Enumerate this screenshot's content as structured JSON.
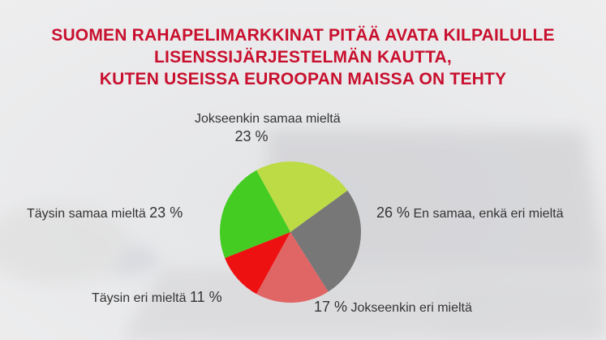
{
  "title_lines": [
    "SUOMEN RAHAPELIMARKKINAT PITÄÄ AVATA KILPAILULLE",
    "LISENSSIJÄRJESTELMÄN KAUTTA,",
    "KUTEN USEISSA EUROOPAN MAISSA ON TEHTY"
  ],
  "chart_data": {
    "type": "pie",
    "unit": "%",
    "slices": [
      {
        "label": "Jokseenkin samaa mieltä",
        "value": 23,
        "value_text": "23 %",
        "color": "#bcdb45"
      },
      {
        "label": "En samaa, enkä eri mieltä",
        "value": 26,
        "value_text": "26 %",
        "color": "#777777"
      },
      {
        "label": "Jokseenkin eri mieltä",
        "value": 17,
        "value_text": "17 %",
        "color": "#e06666"
      },
      {
        "label": "Täysin eri mieltä",
        "value": 11,
        "value_text": "11 %",
        "color": "#ee1111"
      },
      {
        "label": "Täysin samaa mieltä",
        "value": 23,
        "value_text": "23 %",
        "color": "#44cc22"
      }
    ]
  }
}
